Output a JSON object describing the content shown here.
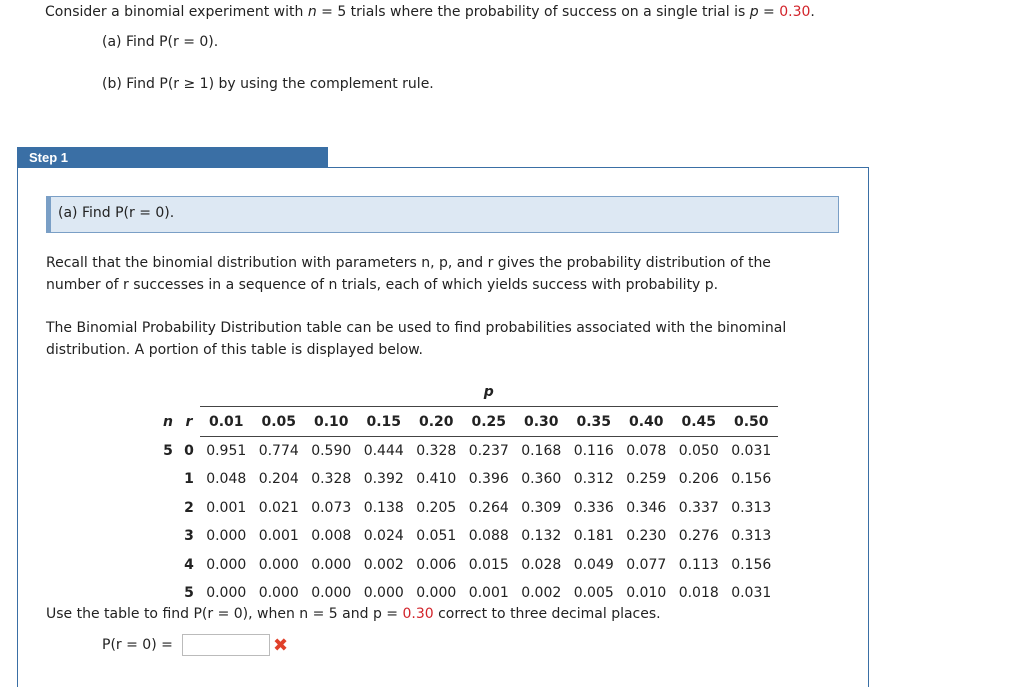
{
  "problem": {
    "intro_prefix": "Consider a binomial experiment with ",
    "intro_n_var": "n",
    "intro_n_eq": " = 5 trials where the probability of success on a single trial is ",
    "intro_p_var": "p",
    "intro_p_eq": " = ",
    "intro_p_value": "0.30",
    "intro_end": ".",
    "part_a": "(a) Find P(r = 0).",
    "part_b": "(b) Find P(r ≥ 1) by using the complement rule."
  },
  "step": {
    "tab_label": "Step 1",
    "subquestion": "(a) Find P(r = 0).",
    "recall_line1": "Recall that the binomial distribution with parameters n, p, and r gives the probability distribution of the",
    "recall_line2": "number of r successes in a sequence of n trials, each of which yields success with probability p.",
    "table_line1": "The Binomial Probability Distribution table can be used to find probabilities associated with the binominal",
    "table_line2": "distribution. A portion of this table is displayed below.",
    "use_prefix": "Use the table to find P(r = 0), when n = 5 and p = ",
    "use_p_value": "0.30",
    "use_suffix": " correct to three decimal places.",
    "answer_label": "P(r = 0) =",
    "answer_value": "",
    "answer_status": "incorrect"
  },
  "binomial_table": {
    "p_header": "p",
    "n_header": "n",
    "r_header": "r",
    "n_value": "5",
    "p_values": [
      "0.01",
      "0.05",
      "0.10",
      "0.15",
      "0.20",
      "0.25",
      "0.30",
      "0.35",
      "0.40",
      "0.45",
      "0.50"
    ],
    "rows": [
      {
        "r": "0",
        "values": [
          "0.951",
          "0.774",
          "0.590",
          "0.444",
          "0.328",
          "0.237",
          "0.168",
          "0.116",
          "0.078",
          "0.050",
          "0.031"
        ]
      },
      {
        "r": "1",
        "values": [
          "0.048",
          "0.204",
          "0.328",
          "0.392",
          "0.410",
          "0.396",
          "0.360",
          "0.312",
          "0.259",
          "0.206",
          "0.156"
        ]
      },
      {
        "r": "2",
        "values": [
          "0.001",
          "0.021",
          "0.073",
          "0.138",
          "0.205",
          "0.264",
          "0.309",
          "0.336",
          "0.346",
          "0.337",
          "0.313"
        ]
      },
      {
        "r": "3",
        "values": [
          "0.000",
          "0.001",
          "0.008",
          "0.024",
          "0.051",
          "0.088",
          "0.132",
          "0.181",
          "0.230",
          "0.276",
          "0.313"
        ]
      },
      {
        "r": "4",
        "values": [
          "0.000",
          "0.000",
          "0.000",
          "0.002",
          "0.006",
          "0.015",
          "0.028",
          "0.049",
          "0.077",
          "0.113",
          "0.156"
        ]
      },
      {
        "r": "5",
        "values": [
          "0.000",
          "0.000",
          "0.000",
          "0.000",
          "0.000",
          "0.001",
          "0.002",
          "0.005",
          "0.010",
          "0.018",
          "0.031"
        ]
      }
    ]
  },
  "colors": {
    "accent_red": "#d2232a",
    "step_blue": "#3a6fa5",
    "subq_bg": "#dde8f3",
    "error_mark": "#e0402a"
  },
  "icons": {
    "incorrect": "close-icon"
  }
}
